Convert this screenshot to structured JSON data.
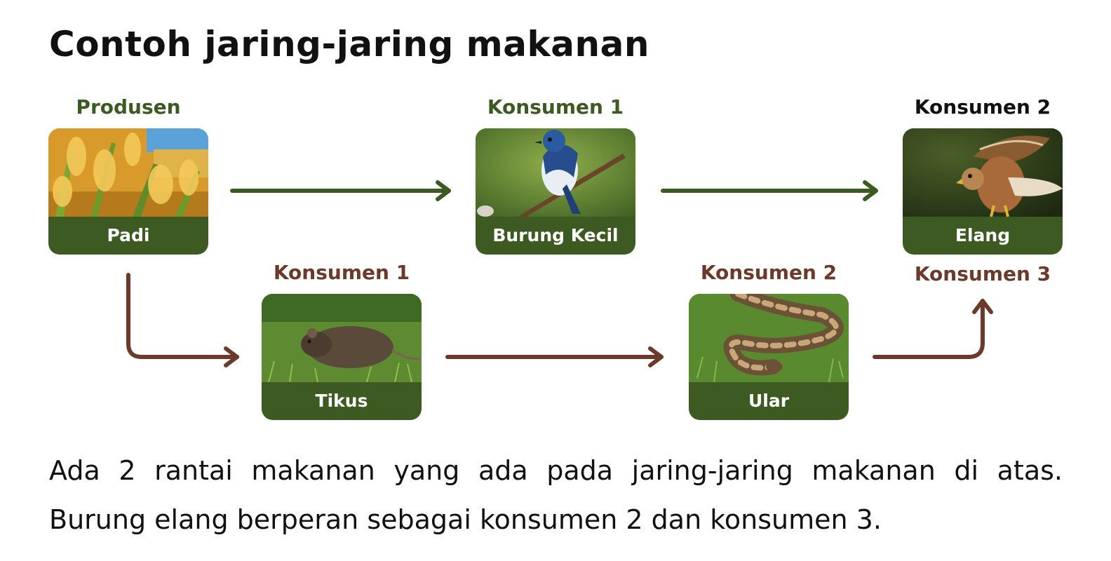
{
  "title": "Contoh jaring-jaring makanan",
  "nodes": {
    "padi": {
      "role": "Produsen",
      "label": "Padi"
    },
    "burung": {
      "role": "Konsumen 1",
      "label": "Burung Kecil"
    },
    "elang": {
      "role_top": "Konsumen 2",
      "role_bottom": "Konsumen 3",
      "label": "Elang"
    },
    "tikus": {
      "role": "Konsumen 1",
      "label": "Tikus"
    },
    "ular": {
      "role": "Konsumen 2",
      "label": "Ular"
    }
  },
  "colors": {
    "green": "#3c5a22",
    "brown": "#6b3a2a"
  },
  "description": "Ada 2 rantai makanan yang ada pada jaring-jaring makanan di atas. Burung elang berperan sebagai konsumen 2 dan konsumen 3."
}
